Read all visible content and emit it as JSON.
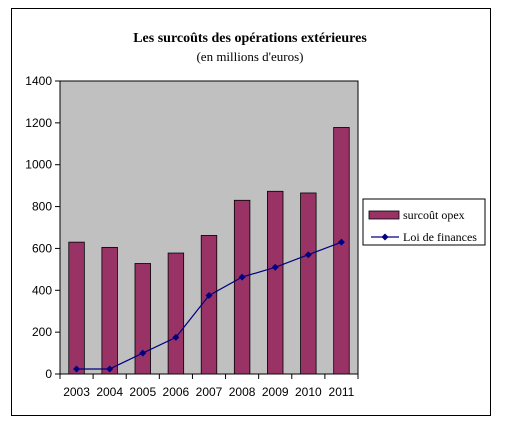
{
  "chart_data": {
    "type": "bar",
    "title": "Les surcoûts des opérations extérieures",
    "subtitle": "(en millions d'euros)",
    "categories": [
      "2003",
      "2004",
      "2005",
      "2006",
      "2007",
      "2008",
      "2009",
      "2010",
      "2011"
    ],
    "ylim": [
      0,
      1400
    ],
    "yticks": [
      0,
      200,
      400,
      600,
      800,
      1000,
      1200,
      1400
    ],
    "grid": false,
    "legend_position": "right",
    "series": [
      {
        "name": "surcoût opex",
        "kind": "bar",
        "color": "#993366",
        "values": [
          630,
          605,
          528,
          578,
          662,
          830,
          873,
          865,
          1178
        ]
      },
      {
        "name": "Loi de finances",
        "kind": "line",
        "color": "#000080",
        "values": [
          24,
          24,
          100,
          175,
          375,
          463,
          510,
          570,
          630
        ]
      }
    ],
    "plot_background": "#c0c0c0"
  }
}
